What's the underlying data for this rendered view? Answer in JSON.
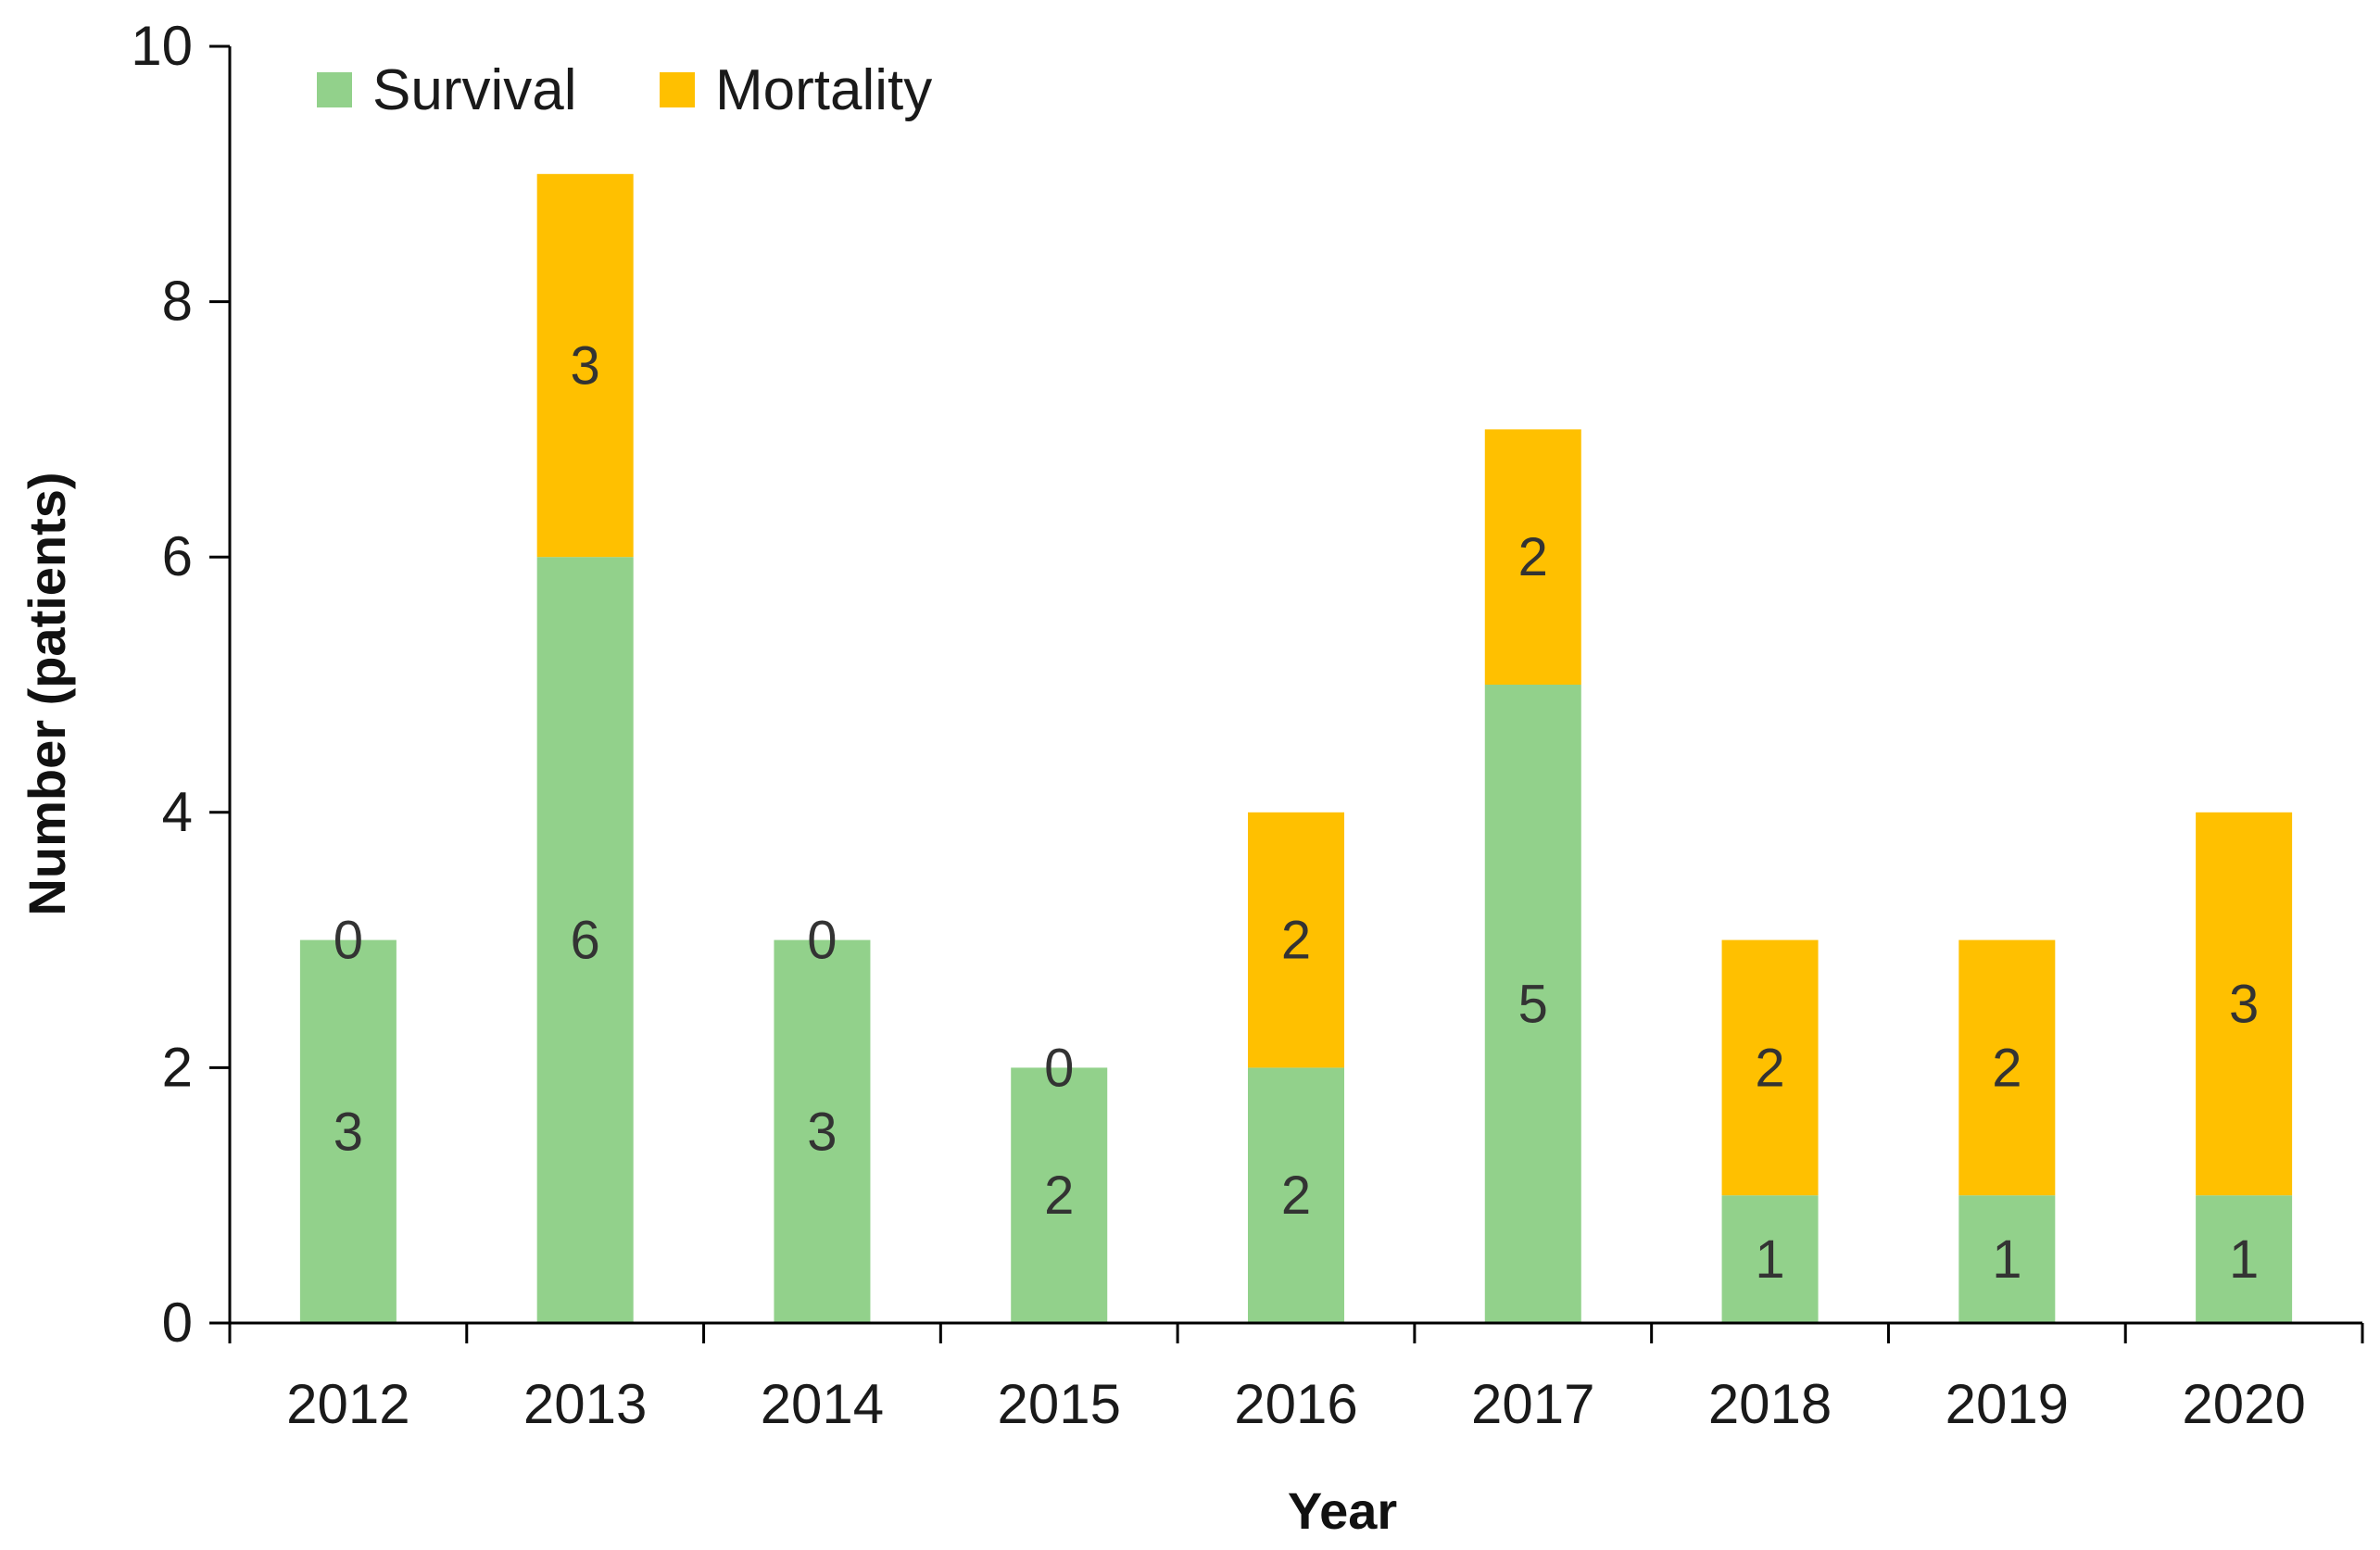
{
  "chart_data": {
    "type": "bar",
    "stacked": true,
    "title": "",
    "xlabel": "Year",
    "ylabel": "Number (patients)",
    "ylim": [
      0,
      10
    ],
    "yticks": [
      0,
      2,
      4,
      6,
      8,
      10
    ],
    "categories": [
      "2012",
      "2013",
      "2014",
      "2015",
      "2016",
      "2017",
      "2018",
      "2019",
      "2020"
    ],
    "series": [
      {
        "name": "Survival",
        "color": "#92d18b",
        "values": [
          3,
          6,
          3,
          2,
          2,
          5,
          1,
          1,
          1
        ]
      },
      {
        "name": "Mortality",
        "color": "#ffc000",
        "values": [
          0,
          3,
          0,
          0,
          2,
          2,
          2,
          2,
          3
        ]
      }
    ],
    "legend_position": "top-left",
    "grid": false
  }
}
